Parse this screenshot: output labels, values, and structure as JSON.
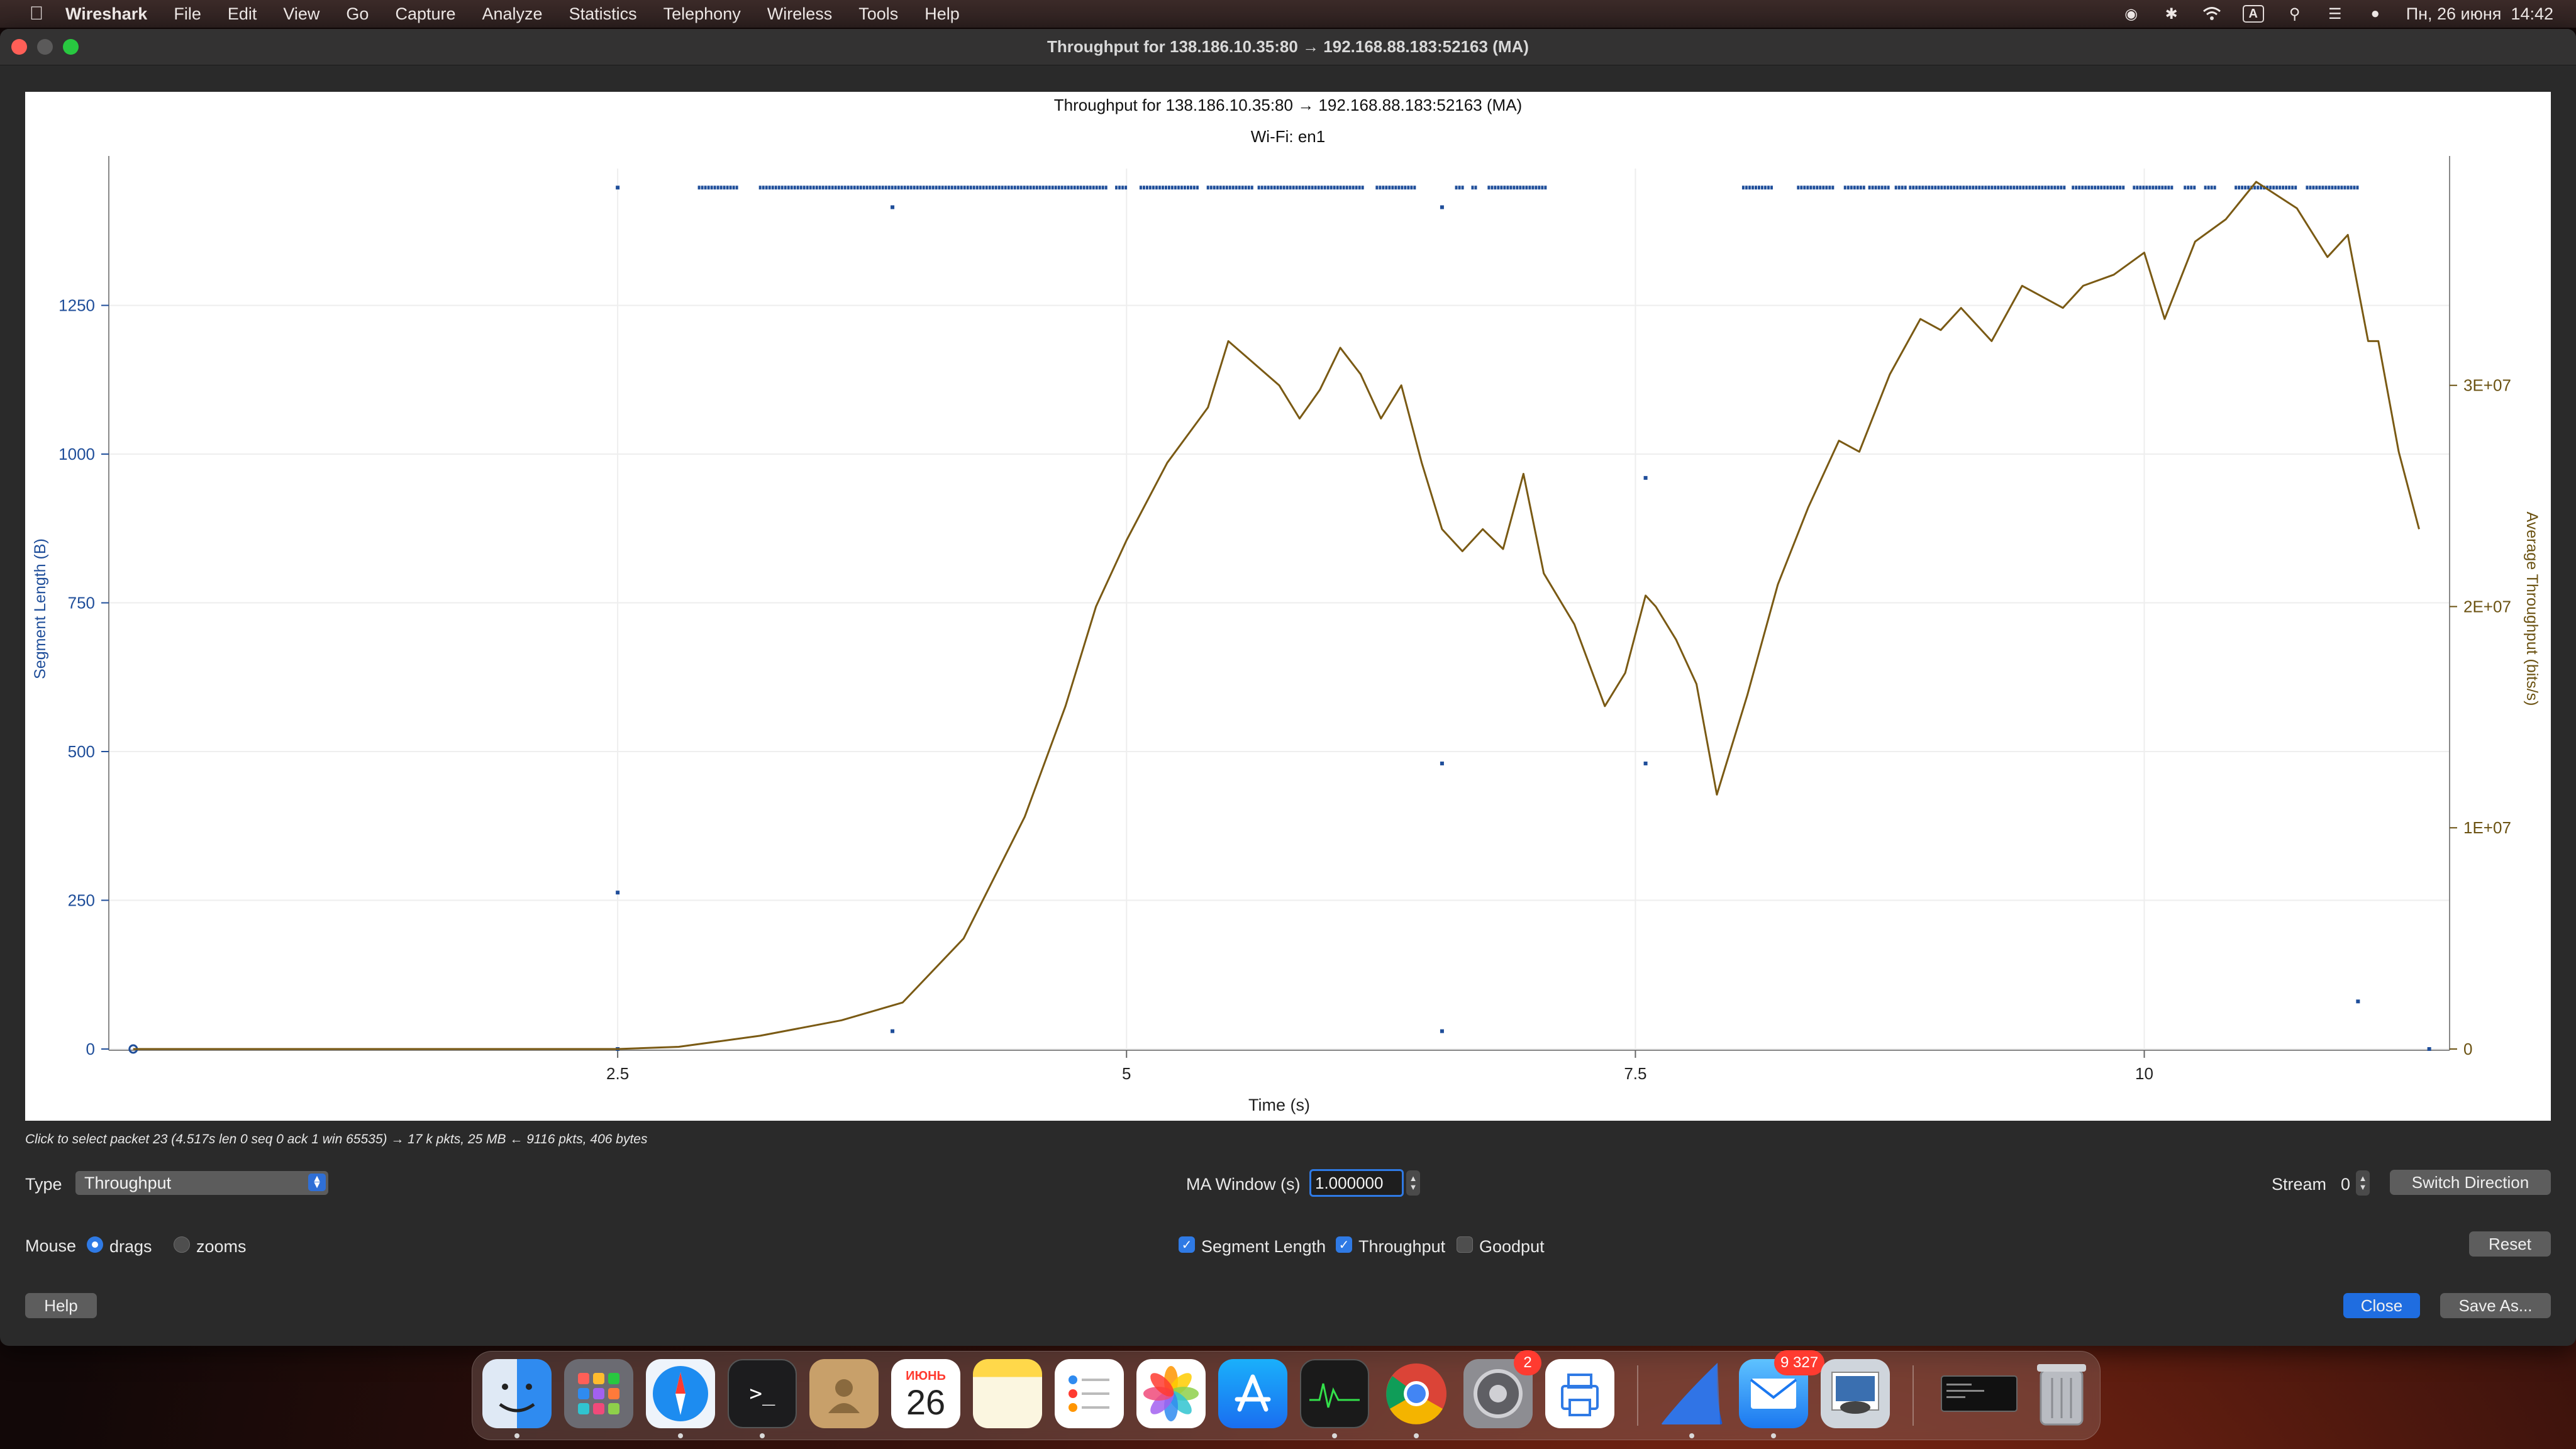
{
  "menubar": {
    "app": "Wireshark",
    "items": [
      "File",
      "Edit",
      "View",
      "Go",
      "Capture",
      "Analyze",
      "Statistics",
      "Telephony",
      "Wireless",
      "Tools",
      "Help"
    ],
    "input_source": "A",
    "datetime": "Пн, 26 июня  14:42",
    "icons": [
      "screen-record-icon",
      "bluetooth-icon",
      "wifi-icon",
      "input-source-icon",
      "spotlight-icon",
      "control-center-icon",
      "siri-icon"
    ]
  },
  "window": {
    "title": "Throughput for 138.186.10.35:80 → 192.168.88.183:52163 (MA)"
  },
  "chart_data": {
    "type": "line",
    "title": "Throughput for 138.186.10.35:80 → 192.168.88.183:52163 (MA)",
    "subtitle": "Wi-Fi: en1",
    "xlabel": "Time (s)",
    "ylabel_left": "Segment Length (B)",
    "ylabel_right": "Average Throughput (bits/s)",
    "xlim": [
      0,
      11.5
    ],
    "ylim_left": [
      0,
      1480
    ],
    "ylim_right": [
      0,
      39800000
    ],
    "x_ticks": [
      "2.5",
      "5",
      "7.5",
      "10"
    ],
    "x_tick_values": [
      2.5,
      5,
      7.5,
      10
    ],
    "y_ticks_left": [
      "0",
      "250",
      "500",
      "750",
      "1000",
      "1250"
    ],
    "y_tick_values_left": [
      0,
      250,
      500,
      750,
      1000,
      1250
    ],
    "y_ticks_right": [
      "0",
      "1E+07",
      "2E+07",
      "3E+07"
    ],
    "y_tick_values_right": [
      0,
      10000000,
      20000000,
      30000000
    ],
    "grid": true,
    "colors": {
      "segment": "#1f4e9a",
      "throughput": "#7a5a14",
      "left_axis": "#1f4e9a",
      "right_axis": "#6b5212"
    },
    "series": [
      {
        "name": "Segment Length",
        "axis": "left",
        "style": "points",
        "full_segment_bursts": [
          [
            2.9,
            3.1
          ],
          [
            3.2,
            4.9
          ],
          [
            4.95,
            5.0
          ],
          [
            5.07,
            5.35
          ],
          [
            5.4,
            5.62
          ],
          [
            5.65,
            6.17
          ],
          [
            6.23,
            6.43
          ],
          [
            6.62,
            6.66
          ],
          [
            6.7,
            6.72
          ],
          [
            6.78,
            7.06
          ],
          [
            8.03,
            8.17
          ],
          [
            8.3,
            8.47
          ],
          [
            8.53,
            8.63
          ],
          [
            8.65,
            8.75
          ],
          [
            8.78,
            8.83
          ],
          [
            8.85,
            9.62
          ],
          [
            9.65,
            9.9
          ],
          [
            9.95,
            10.15
          ],
          [
            10.2,
            10.26
          ],
          [
            10.3,
            10.35
          ],
          [
            10.45,
            10.75
          ],
          [
            10.8,
            11.05
          ]
        ],
        "full_segment_value": 1448,
        "points": [
          {
            "x": 0.12,
            "y": 0
          },
          {
            "x": 2.5,
            "y": 1448
          },
          {
            "x": 2.5,
            "y": 263
          },
          {
            "x": 2.5,
            "y": 0
          },
          {
            "x": 3.85,
            "y": 1415
          },
          {
            "x": 3.85,
            "y": 30
          },
          {
            "x": 6.55,
            "y": 1415
          },
          {
            "x": 6.55,
            "y": 480
          },
          {
            "x": 6.55,
            "y": 30
          },
          {
            "x": 7.55,
            "y": 960
          },
          {
            "x": 7.55,
            "y": 480
          },
          {
            "x": 11.05,
            "y": 80
          },
          {
            "x": 11.4,
            "y": 0
          }
        ]
      },
      {
        "name": "Throughput",
        "axis": "right",
        "style": "line",
        "x": [
          0.12,
          2.5,
          2.8,
          3.2,
          3.6,
          3.9,
          4.2,
          4.5,
          4.7,
          4.85,
          5.0,
          5.2,
          5.4,
          5.5,
          5.6,
          5.75,
          5.85,
          5.95,
          6.05,
          6.15,
          6.25,
          6.35,
          6.45,
          6.55,
          6.65,
          6.75,
          6.85,
          6.95,
          7.05,
          7.2,
          7.35,
          7.45,
          7.55,
          7.6,
          7.7,
          7.8,
          7.9,
          8.05,
          8.2,
          8.35,
          8.5,
          8.6,
          8.75,
          8.9,
          9.0,
          9.1,
          9.25,
          9.4,
          9.6,
          9.7,
          9.85,
          10.0,
          10.1,
          10.25,
          10.4,
          10.55,
          10.75,
          10.9,
          11.0,
          11.1,
          11.15,
          11.25,
          11.35
        ],
        "values": [
          0,
          0,
          100000,
          600000,
          1300000,
          2100000,
          5000000,
          10500000,
          15500000,
          20000000,
          23000000,
          26500000,
          29000000,
          32000000,
          31200000,
          30000000,
          28500000,
          29800000,
          31700000,
          30500000,
          28500000,
          30000000,
          26500000,
          23500000,
          22500000,
          23500000,
          22600000,
          26000000,
          21500000,
          19200000,
          15500000,
          17000000,
          20500000,
          20000000,
          18500000,
          16500000,
          11500000,
          16000000,
          21000000,
          24500000,
          27500000,
          27000000,
          30500000,
          33000000,
          32500000,
          33500000,
          32000000,
          34500000,
          33500000,
          34500000,
          35000000,
          36000000,
          33000000,
          36500000,
          37500000,
          39200000,
          38000000,
          35800000,
          36800000,
          32000000,
          32000000,
          27000000,
          23500000
        ]
      }
    ]
  },
  "hint_text": "Click to select packet 23 (4.517s len 0 seq 0 ack 1 win 65535) → 17 k pkts, 25 MB ← 9116 pkts, 406 bytes",
  "controls": {
    "type_label": "Type",
    "type_value": "Throughput",
    "ma_label": "MA Window (s)",
    "ma_value": "1.000000",
    "stream_label": "Stream",
    "stream_value": "0",
    "switch_direction": "Switch Direction",
    "mouse_label": "Mouse",
    "mouse_drags": "drags",
    "mouse_zooms": "zooms",
    "cb_segment": "Segment Length",
    "cb_throughput": "Throughput",
    "cb_goodput": "Goodput",
    "reset": "Reset",
    "help": "Help",
    "close": "Close",
    "save_as": "Save As..."
  },
  "dock": {
    "calendar_month": "ИЮНЬ",
    "calendar_day": "26",
    "settings_badge": "2",
    "mail_badge": "9 327",
    "apps": [
      "finder-icon",
      "launchpad-icon",
      "safari-icon",
      "terminal-icon",
      "contacts-icon",
      "calendar-icon",
      "notes-icon",
      "reminders-icon",
      "photos-icon",
      "app-store-icon",
      "activity-monitor-icon",
      "chrome-icon",
      "system-settings-icon",
      "printer-icon",
      "wireshark-icon",
      "mail-icon",
      "preview-icon",
      "terminal-window-icon",
      "trash-icon"
    ]
  }
}
